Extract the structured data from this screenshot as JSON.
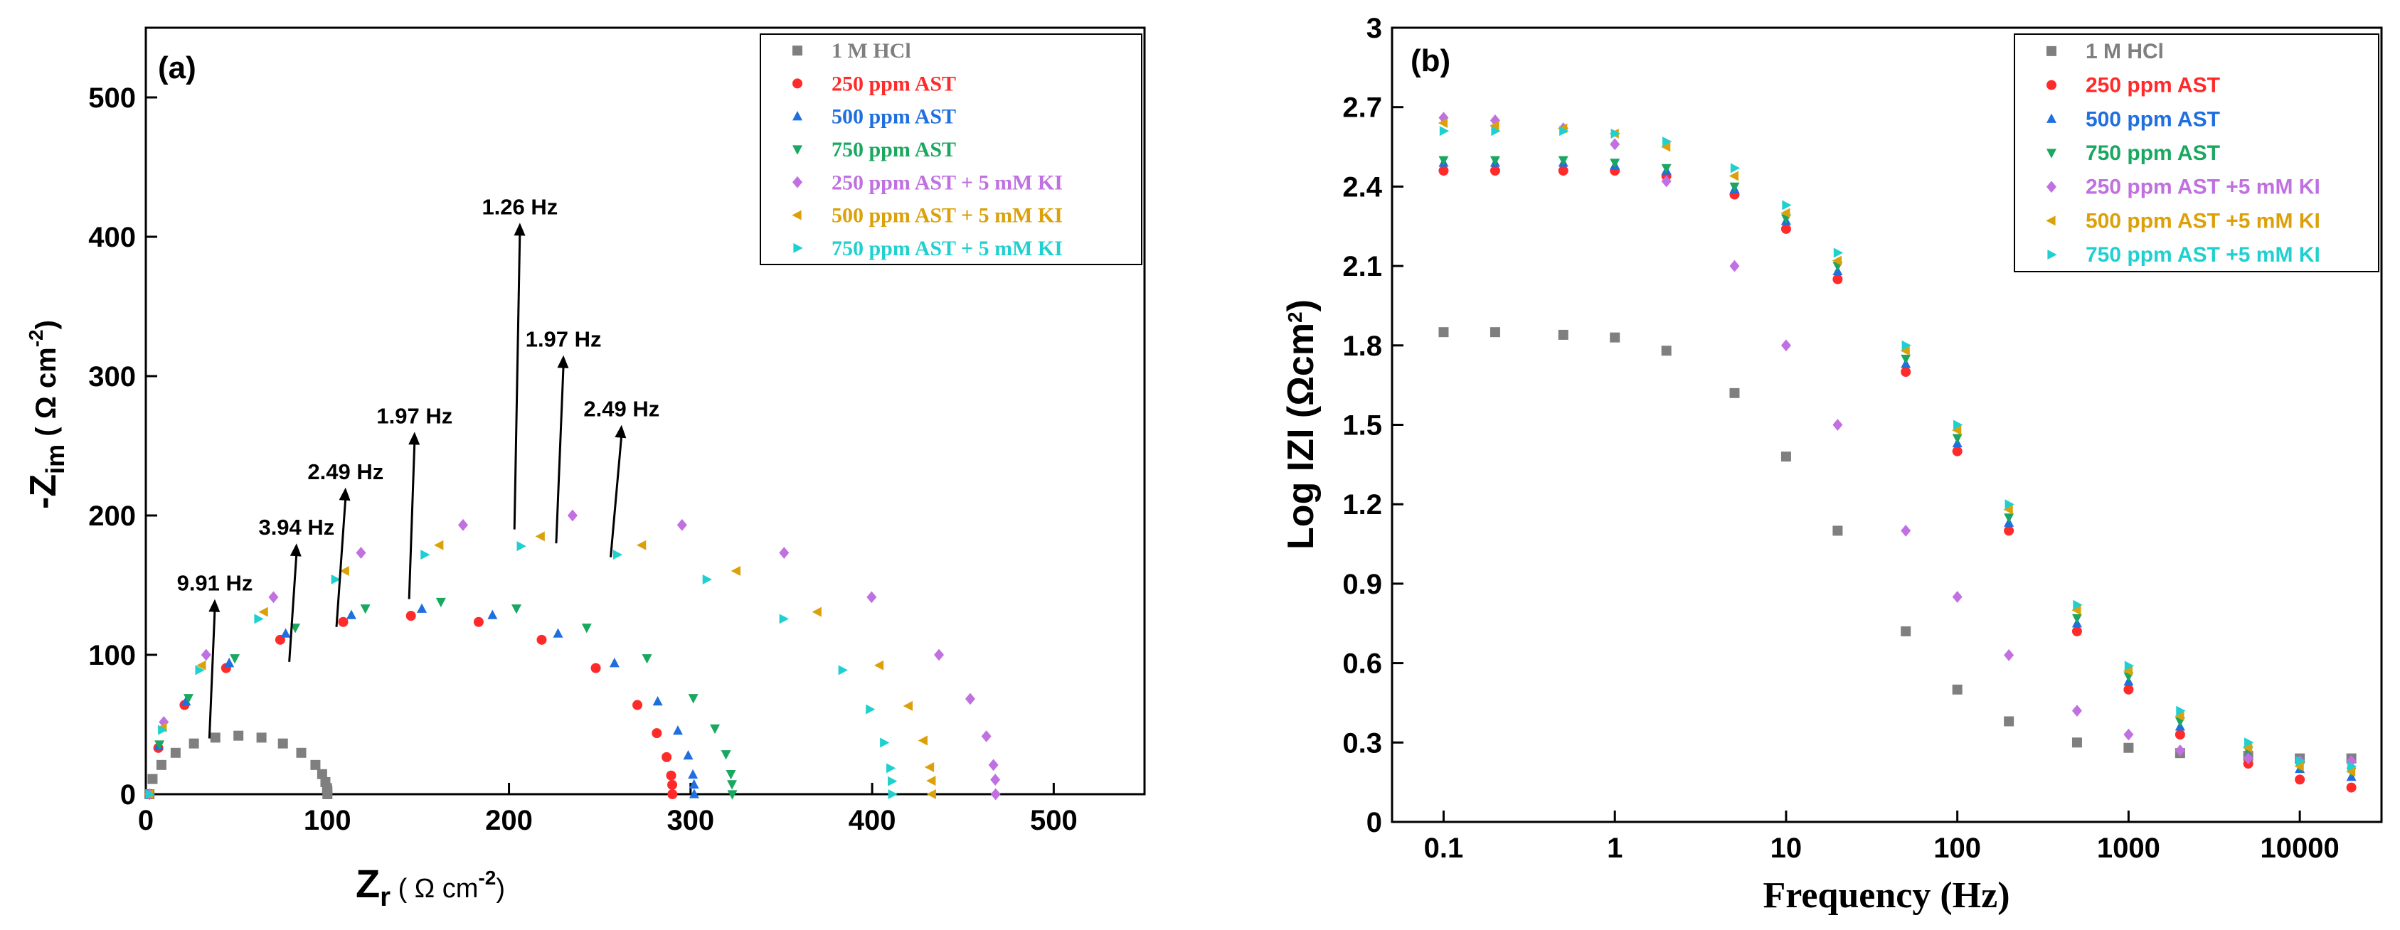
{
  "chart_data": [
    {
      "type": "scatter",
      "panel": "(a)",
      "xlabel": [
        "Z",
        "r",
        " ( Ω cm",
        "-2",
        ")"
      ],
      "ylabel": [
        "-Z",
        "im",
        " ( Ω cm",
        "-2",
        ")"
      ],
      "xlim": [
        0,
        550
      ],
      "xticks": [
        0,
        100,
        200,
        300,
        400,
        500
      ],
      "ylim": [
        0,
        550
      ],
      "yticks": [
        0,
        100,
        200,
        300,
        400,
        500
      ],
      "series": [
        {
          "name": "1 M HCl",
          "color": "#7f7f7f",
          "marker": "square",
          "x": [
            2,
            3.7,
            8.6,
            16.4,
            26.5,
            38.3,
            51,
            63.7,
            75.5,
            85.6,
            93.4,
            97.1,
            98.9,
            99.8,
            100,
            100
          ],
          "y": [
            0,
            10.9,
            21,
            29.7,
            36.4,
            40.6,
            42,
            40.6,
            36.4,
            29.7,
            21,
            14.4,
            8.7,
            4.4,
            2.2,
            0
          ]
        },
        {
          "name": "250 ppm AST",
          "color": "#ff2a2a",
          "marker": "circle",
          "x": [
            2,
            6.9,
            21.3,
            44.2,
            74,
            108.7,
            146,
            183.3,
            218,
            247.8,
            270.7,
            281.4,
            286.8,
            289.3,
            289.9,
            290
          ],
          "y": [
            0,
            33.2,
            64,
            90.5,
            110.8,
            123.6,
            128,
            123.6,
            110.8,
            90.5,
            64,
            43.8,
            26.6,
            13.4,
            6.7,
            0
          ]
        },
        {
          "name": "500 ppm AST",
          "color": "#1f6fde",
          "marker": "up",
          "x": [
            2,
            7.1,
            22.1,
            45.9,
            77,
            113.2,
            152,
            190.9,
            227,
            258.1,
            281.9,
            293,
            298.7,
            301.3,
            301.9,
            302
          ],
          "y": [
            0,
            34.4,
            66.5,
            94,
            115.2,
            128.5,
            133,
            128.5,
            115.2,
            94,
            66.5,
            45.5,
            27.7,
            14,
            6.9,
            0
          ]
        },
        {
          "name": "750 ppm AST",
          "color": "#1aa760",
          "marker": "down",
          "x": [
            2,
            7.5,
            23.5,
            49,
            82.3,
            120.9,
            162.5,
            204.1,
            242.8,
            276,
            301.5,
            313.4,
            319.5,
            322.2,
            322.8,
            323
          ],
          "y": [
            0,
            35.7,
            69,
            97.6,
            119.5,
            133.3,
            138,
            133.3,
            119.5,
            97.6,
            69,
            47.2,
            28.7,
            14.5,
            7.2,
            0
          ]
        },
        {
          "name": "250 ppm AST + 5 mM KI",
          "color": "#c070e0",
          "marker": "diamond",
          "x": [
            2,
            9.9,
            33.2,
            70.3,
            118.5,
            174.7,
            235,
            295.3,
            351.5,
            399.7,
            436.8,
            454,
            462.9,
            466.8,
            467.8,
            468
          ],
          "y": [
            0,
            51.8,
            100,
            141.4,
            173.2,
            193.2,
            200,
            193.2,
            173.2,
            141.4,
            100,
            68.4,
            41.6,
            21,
            10.4,
            0
          ]
        },
        {
          "name": "500 ppm AST + 5 mM KI",
          "color": "#dca10a",
          "marker": "left",
          "x": [
            2,
            9.3,
            30.9,
            65.1,
            109.8,
            161.7,
            217.5,
            273.3,
            325.3,
            369.9,
            404.1,
            420.1,
            428.3,
            431.9,
            432.8,
            433
          ],
          "y": [
            0,
            47.9,
            92.5,
            130.8,
            160.2,
            178.7,
            185,
            178.7,
            160.2,
            130.8,
            92.5,
            63.3,
            38.5,
            19.4,
            9.6,
            0
          ]
        },
        {
          "name": "750 ppm AST + 5 mM KI",
          "color": "#20d0d0",
          "marker": "right",
          "x": [
            2,
            8.9,
            29.4,
            61.9,
            104.3,
            153.5,
            206.5,
            259.5,
            308.8,
            351.1,
            383.6,
            398.7,
            406.5,
            410,
            410.8,
            411
          ],
          "y": [
            0,
            46.1,
            89,
            125.8,
            154.1,
            171.9,
            178,
            171.9,
            154.1,
            125.8,
            89,
            60.9,
            37,
            18.7,
            9.3,
            0
          ]
        }
      ],
      "annotations": [
        {
          "text": "9.91 Hz",
          "x_from": 35,
          "y_from": 40,
          "x": 38,
          "y": 140
        },
        {
          "text": "3.94 Hz",
          "x_from": 79,
          "y_from": 95,
          "x": 83,
          "y": 180
        },
        {
          "text": "2.49 Hz",
          "x_from": 105,
          "y_from": 120,
          "x": 110,
          "y": 220
        },
        {
          "text": "1.97 Hz",
          "x_from": 145,
          "y_from": 140,
          "x": 148,
          "y": 260
        },
        {
          "text": "1.26 Hz",
          "x_from": 203,
          "y_from": 190,
          "x": 206,
          "y": 410
        },
        {
          "text": "1.97 Hz",
          "x_from": 226,
          "y_from": 180,
          "x": 230,
          "y": 315
        },
        {
          "text": "2.49 Hz",
          "x_from": 256,
          "y_from": 170,
          "x": 262,
          "y": 265
        }
      ]
    },
    {
      "type": "scatter",
      "panel": "(b)",
      "xscale": "log",
      "xlabel": [
        "Frequency (Hz)"
      ],
      "ylabel": [
        "Log IZI (Ωcm",
        "2",
        ")"
      ],
      "xlim": [
        0.05,
        30000
      ],
      "xticks": [
        0.1,
        1,
        10,
        100,
        1000,
        10000
      ],
      "ylim": [
        0,
        3
      ],
      "yticks": [
        0,
        0.3,
        0.6,
        0.9,
        1.2,
        1.5,
        1.8,
        2.1,
        2.4,
        2.7,
        3
      ],
      "x": [
        0.1,
        0.2,
        0.5,
        1,
        2,
        5,
        10,
        20,
        50,
        100,
        200,
        500,
        1000,
        2000,
        5000,
        10000,
        20000
      ],
      "series": [
        {
          "name": "1 M HCl",
          "color": "#7f7f7f",
          "marker": "square",
          "values": [
            1.85,
            1.85,
            1.84,
            1.83,
            1.78,
            1.62,
            1.38,
            1.1,
            0.72,
            0.5,
            0.38,
            0.3,
            0.28,
            0.26,
            0.25,
            0.24,
            0.24
          ]
        },
        {
          "name": "250 ppm AST",
          "color": "#ff2a2a",
          "marker": "circle",
          "values": [
            2.46,
            2.46,
            2.46,
            2.46,
            2.44,
            2.37,
            2.24,
            2.05,
            1.7,
            1.4,
            1.1,
            0.72,
            0.5,
            0.33,
            0.22,
            0.16,
            0.13
          ]
        },
        {
          "name": "500 ppm AST",
          "color": "#1f6fde",
          "marker": "up",
          "values": [
            2.49,
            2.49,
            2.49,
            2.48,
            2.46,
            2.39,
            2.27,
            2.08,
            1.73,
            1.43,
            1.13,
            0.75,
            0.53,
            0.36,
            0.25,
            0.2,
            0.17
          ]
        },
        {
          "name": "750 ppm AST",
          "color": "#1aa760",
          "marker": "down",
          "values": [
            2.5,
            2.5,
            2.5,
            2.49,
            2.47,
            2.4,
            2.28,
            2.1,
            1.75,
            1.45,
            1.15,
            0.77,
            0.55,
            0.38,
            0.27,
            0.21,
            0.19
          ]
        },
        {
          "name": "250 ppm AST +5 mM KI",
          "color": "#c070e0",
          "marker": "diamond",
          "values": [
            2.66,
            2.65,
            2.62,
            2.56,
            2.42,
            2.1,
            1.8,
            1.5,
            1.1,
            0.85,
            0.63,
            0.42,
            0.33,
            0.27,
            0.24,
            0.23,
            0.23
          ]
        },
        {
          "name": "500 ppm AST +5 mM KI",
          "color": "#dca10a",
          "marker": "left",
          "values": [
            2.64,
            2.63,
            2.62,
            2.6,
            2.55,
            2.44,
            2.3,
            2.12,
            1.78,
            1.48,
            1.18,
            0.8,
            0.57,
            0.4,
            0.28,
            0.21,
            0.19
          ]
        },
        {
          "name": "750 ppm AST +5 mM KI",
          "color": "#20d0d0",
          "marker": "right",
          "values": [
            2.61,
            2.61,
            2.61,
            2.6,
            2.57,
            2.47,
            2.33,
            2.15,
            1.8,
            1.5,
            1.2,
            0.82,
            0.59,
            0.42,
            0.3,
            0.23,
            0.21
          ]
        }
      ]
    }
  ]
}
